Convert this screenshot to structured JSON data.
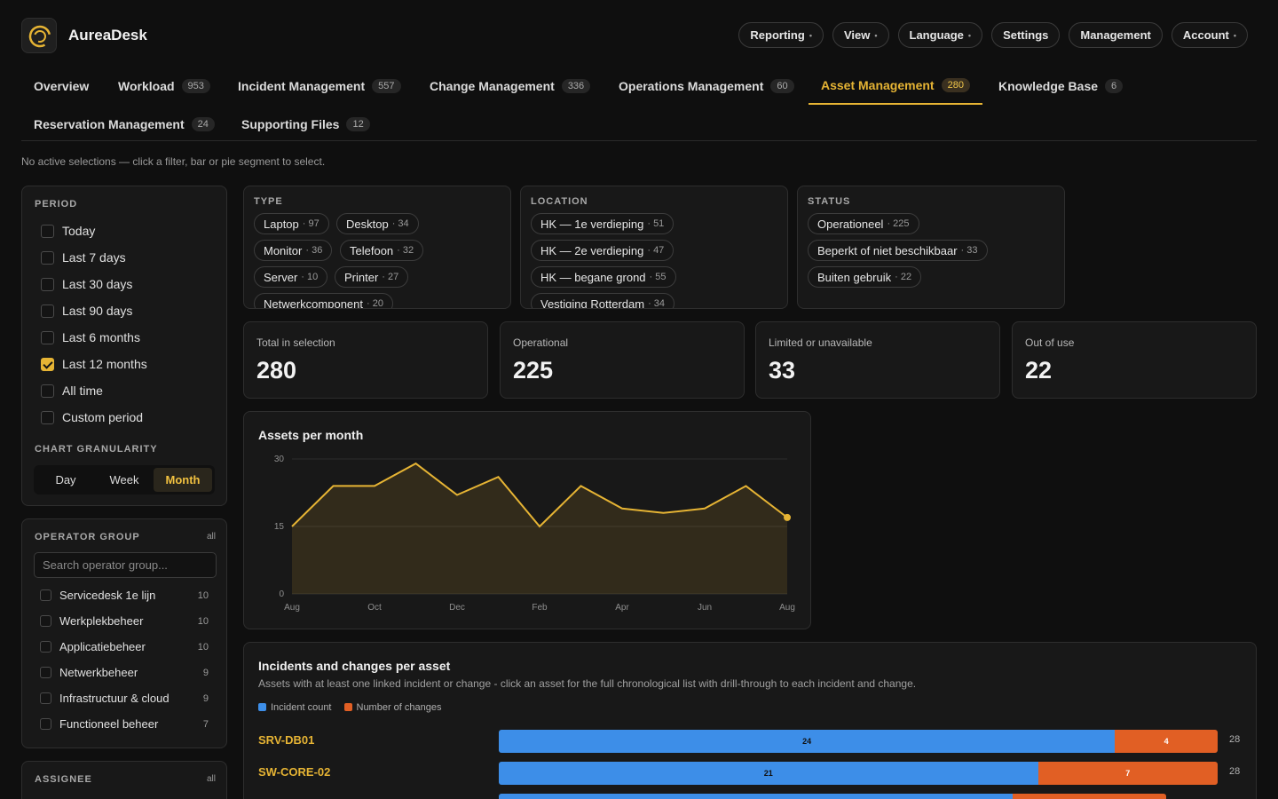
{
  "app": {
    "name": "AureaDesk"
  },
  "topnav": [
    {
      "label": "Reporting",
      "dropdown": true
    },
    {
      "label": "View",
      "dropdown": true
    },
    {
      "label": "Language",
      "dropdown": true
    },
    {
      "label": "Settings",
      "dropdown": false
    },
    {
      "label": "Management",
      "dropdown": false
    },
    {
      "label": "Account",
      "dropdown": true
    }
  ],
  "tabs": [
    {
      "label": "Overview",
      "count": ""
    },
    {
      "label": "Workload",
      "count": "953"
    },
    {
      "label": "Incident Management",
      "count": "557"
    },
    {
      "label": "Change Management",
      "count": "336"
    },
    {
      "label": "Operations Management",
      "count": "60"
    },
    {
      "label": "Asset Management",
      "count": "280",
      "active": true
    },
    {
      "label": "Knowledge Base",
      "count": "6"
    },
    {
      "label": "Reservation Management",
      "count": "24"
    },
    {
      "label": "Supporting Files",
      "count": "12"
    }
  ],
  "hint": "No active selections — click a filter, bar or pie segment to select.",
  "period": {
    "title": "PERIOD",
    "options": [
      {
        "label": "Today",
        "checked": false
      },
      {
        "label": "Last 7 days",
        "checked": false
      },
      {
        "label": "Last 30 days",
        "checked": false
      },
      {
        "label": "Last 90 days",
        "checked": false
      },
      {
        "label": "Last 6 months",
        "checked": false
      },
      {
        "label": "Last 12 months",
        "checked": true
      },
      {
        "label": "All time",
        "checked": false
      },
      {
        "label": "Custom period",
        "checked": false
      }
    ],
    "granularity_title": "CHART GRANULARITY",
    "granularity": [
      "Day",
      "Week",
      "Month"
    ],
    "granularity_selected": "Month"
  },
  "operator_group": {
    "title": "OPERATOR GROUP",
    "all": "all",
    "search_placeholder": "Search operator group...",
    "items": [
      {
        "label": "Servicedesk 1e lijn",
        "count": "10"
      },
      {
        "label": "Werkplekbeheer",
        "count": "10"
      },
      {
        "label": "Applicatiebeheer",
        "count": "10"
      },
      {
        "label": "Netwerkbeheer",
        "count": "9"
      },
      {
        "label": "Infrastructuur & cloud",
        "count": "9"
      },
      {
        "label": "Functioneel beheer",
        "count": "7"
      }
    ]
  },
  "assignee": {
    "title": "ASSIGNEE",
    "all": "all"
  },
  "filters": {
    "type": {
      "title": "TYPE",
      "chips": [
        {
          "label": "Laptop",
          "count": "97"
        },
        {
          "label": "Desktop",
          "count": "34"
        },
        {
          "label": "Monitor",
          "count": "36"
        },
        {
          "label": "Telefoon",
          "count": "32"
        },
        {
          "label": "Server",
          "count": "10"
        },
        {
          "label": "Printer",
          "count": "27"
        },
        {
          "label": "Netwerkcomponent",
          "count": "20"
        }
      ]
    },
    "location": {
      "title": "LOCATION",
      "chips": [
        {
          "label": "HK — 1e verdieping",
          "count": "51"
        },
        {
          "label": "HK — 2e verdieping",
          "count": "47"
        },
        {
          "label": "HK — begane grond",
          "count": "55"
        },
        {
          "label": "Vestiging Rotterdam",
          "count": "34"
        }
      ]
    },
    "status": {
      "title": "STATUS",
      "chips": [
        {
          "label": "Operationeel",
          "count": "225"
        },
        {
          "label": "Beperkt of niet beschikbaar",
          "count": "33"
        },
        {
          "label": "Buiten gebruik",
          "count": "22"
        }
      ]
    }
  },
  "kpis": [
    {
      "label": "Total in selection",
      "value": "280"
    },
    {
      "label": "Operational",
      "value": "225"
    },
    {
      "label": "Limited or unavailable",
      "value": "33"
    },
    {
      "label": "Out of use",
      "value": "22"
    }
  ],
  "chart_data": {
    "type": "area",
    "title": "Assets per month",
    "x": [
      "Aug",
      "Sep",
      "Oct",
      "Nov",
      "Dec",
      "Jan",
      "Feb",
      "Mar",
      "Apr",
      "May",
      "Jun",
      "Jul",
      "Aug"
    ],
    "xticks": [
      "Aug",
      "Oct",
      "Dec",
      "Feb",
      "Apr",
      "Jun",
      "Aug"
    ],
    "series": [
      {
        "values": [
          15,
          24,
          24,
          29,
          22,
          26,
          15,
          24,
          19,
          18,
          19,
          24,
          17
        ]
      }
    ],
    "ylim": [
      0,
      30
    ],
    "yticks": [
      0,
      15,
      30
    ],
    "color": "#e6b434",
    "grid": true
  },
  "incidents": {
    "title": "Incidents and changes per asset",
    "subtitle": "Assets with at least one linked incident or change - click an asset for the full chronological list with drill-through to each incident and change.",
    "legend": [
      {
        "label": "Incident count",
        "color": "#3d8ee8"
      },
      {
        "label": "Number of changes",
        "color": "#e15f24"
      }
    ],
    "rows": [
      {
        "asset": "SRV-DB01",
        "incidents": 24,
        "changes": 4,
        "total": "28"
      },
      {
        "asset": "SW-CORE-02",
        "incidents": 21,
        "changes": 7,
        "total": "28"
      },
      {
        "asset": "",
        "incidents": 20,
        "changes": 6,
        "total": ""
      }
    ]
  }
}
